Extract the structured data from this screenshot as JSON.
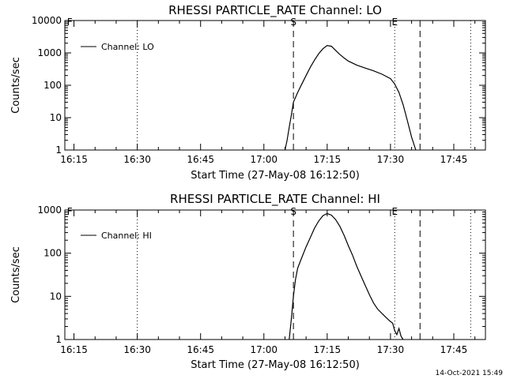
{
  "footer": {
    "timestamp": "14-Oct-2021 15:49"
  },
  "chart_data": [
    {
      "type": "line",
      "title": "RHESSI PARTICLE_RATE Channel: LO",
      "xlabel": "Start Time (27-May-08 16:12:50)",
      "ylabel": "Counts/sec",
      "yscale": "log",
      "xlim": [
        "16:12:50",
        "17:52:30"
      ],
      "ylim": [
        1,
        10000
      ],
      "x_ticks": [
        "16:15",
        "16:30",
        "16:45",
        "17:00",
        "17:15",
        "17:30",
        "17:45"
      ],
      "y_ticks": [
        "1",
        "10",
        "100",
        "1000",
        "10000"
      ],
      "legend": {
        "position": "top-left",
        "entries": [
          "Channel: LO"
        ]
      },
      "markers": [
        {
          "label": "F",
          "time": "16:14"
        },
        {
          "label": "S",
          "time": "17:07"
        },
        {
          "label": "E",
          "time": "17:31"
        }
      ],
      "dashed_lines": [
        "17:07",
        "17:37"
      ],
      "dotted_lines": [
        "16:30",
        "17:31",
        "17:49"
      ],
      "series": [
        {
          "x": [
            "17:05",
            "17:05:30",
            "17:06",
            "17:06:30",
            "17:07",
            "17:08",
            "17:09",
            "17:10",
            "17:11",
            "17:12",
            "17:13",
            "17:14",
            "17:15",
            "17:16",
            "17:17",
            "17:18",
            "17:19",
            "17:20",
            "17:22",
            "17:24",
            "17:26",
            "17:28",
            "17:30",
            "17:31",
            "17:32",
            "17:33",
            "17:34",
            "17:35",
            "17:36"
          ],
          "values": [
            1,
            2,
            5,
            12,
            30,
            60,
            110,
            200,
            360,
            600,
            950,
            1350,
            1700,
            1600,
            1200,
            900,
            700,
            560,
            420,
            340,
            280,
            220,
            160,
            110,
            60,
            25,
            8,
            2.5,
            1
          ]
        }
      ]
    },
    {
      "type": "line",
      "title": "RHESSI PARTICLE_RATE Channel: HI",
      "xlabel": "Start Time (27-May-08 16:12:50)",
      "ylabel": "Counts/sec",
      "yscale": "log",
      "xlim": [
        "16:12:50",
        "17:52:30"
      ],
      "ylim": [
        1,
        1000
      ],
      "x_ticks": [
        "16:15",
        "16:30",
        "16:45",
        "17:00",
        "17:15",
        "17:30",
        "17:45"
      ],
      "y_ticks": [
        "1",
        "10",
        "100",
        "1000"
      ],
      "legend": {
        "position": "top-left",
        "entries": [
          "Channel: HI"
        ]
      },
      "markers": [
        {
          "label": "F",
          "time": "16:14"
        },
        {
          "label": "S",
          "time": "17:07"
        },
        {
          "label": "E",
          "time": "17:31"
        }
      ],
      "dashed_lines": [
        "17:07",
        "17:37"
      ],
      "dotted_lines": [
        "16:30",
        "17:31",
        "17:49"
      ],
      "series": [
        {
          "x": [
            "17:06",
            "17:06:30",
            "17:07",
            "17:07:30",
            "17:08",
            "17:09",
            "17:10",
            "17:11",
            "17:12",
            "17:13",
            "17:14",
            "17:15",
            "17:16",
            "17:17",
            "17:18",
            "17:19",
            "17:20",
            "17:21",
            "17:22",
            "17:23",
            "17:24",
            "17:25",
            "17:26",
            "17:27",
            "17:28",
            "17:29",
            "17:30",
            "17:30:30",
            "17:31",
            "17:31:30",
            "17:32",
            "17:32:30",
            "17:33"
          ],
          "values": [
            1,
            3,
            10,
            25,
            45,
            80,
            140,
            230,
            380,
            560,
            740,
            830,
            760,
            600,
            420,
            260,
            150,
            90,
            50,
            30,
            18,
            11,
            7,
            5,
            4,
            3.2,
            2.6,
            2.4,
            1.6,
            1.3,
            1.8,
            1.2,
            1
          ]
        }
      ]
    }
  ]
}
